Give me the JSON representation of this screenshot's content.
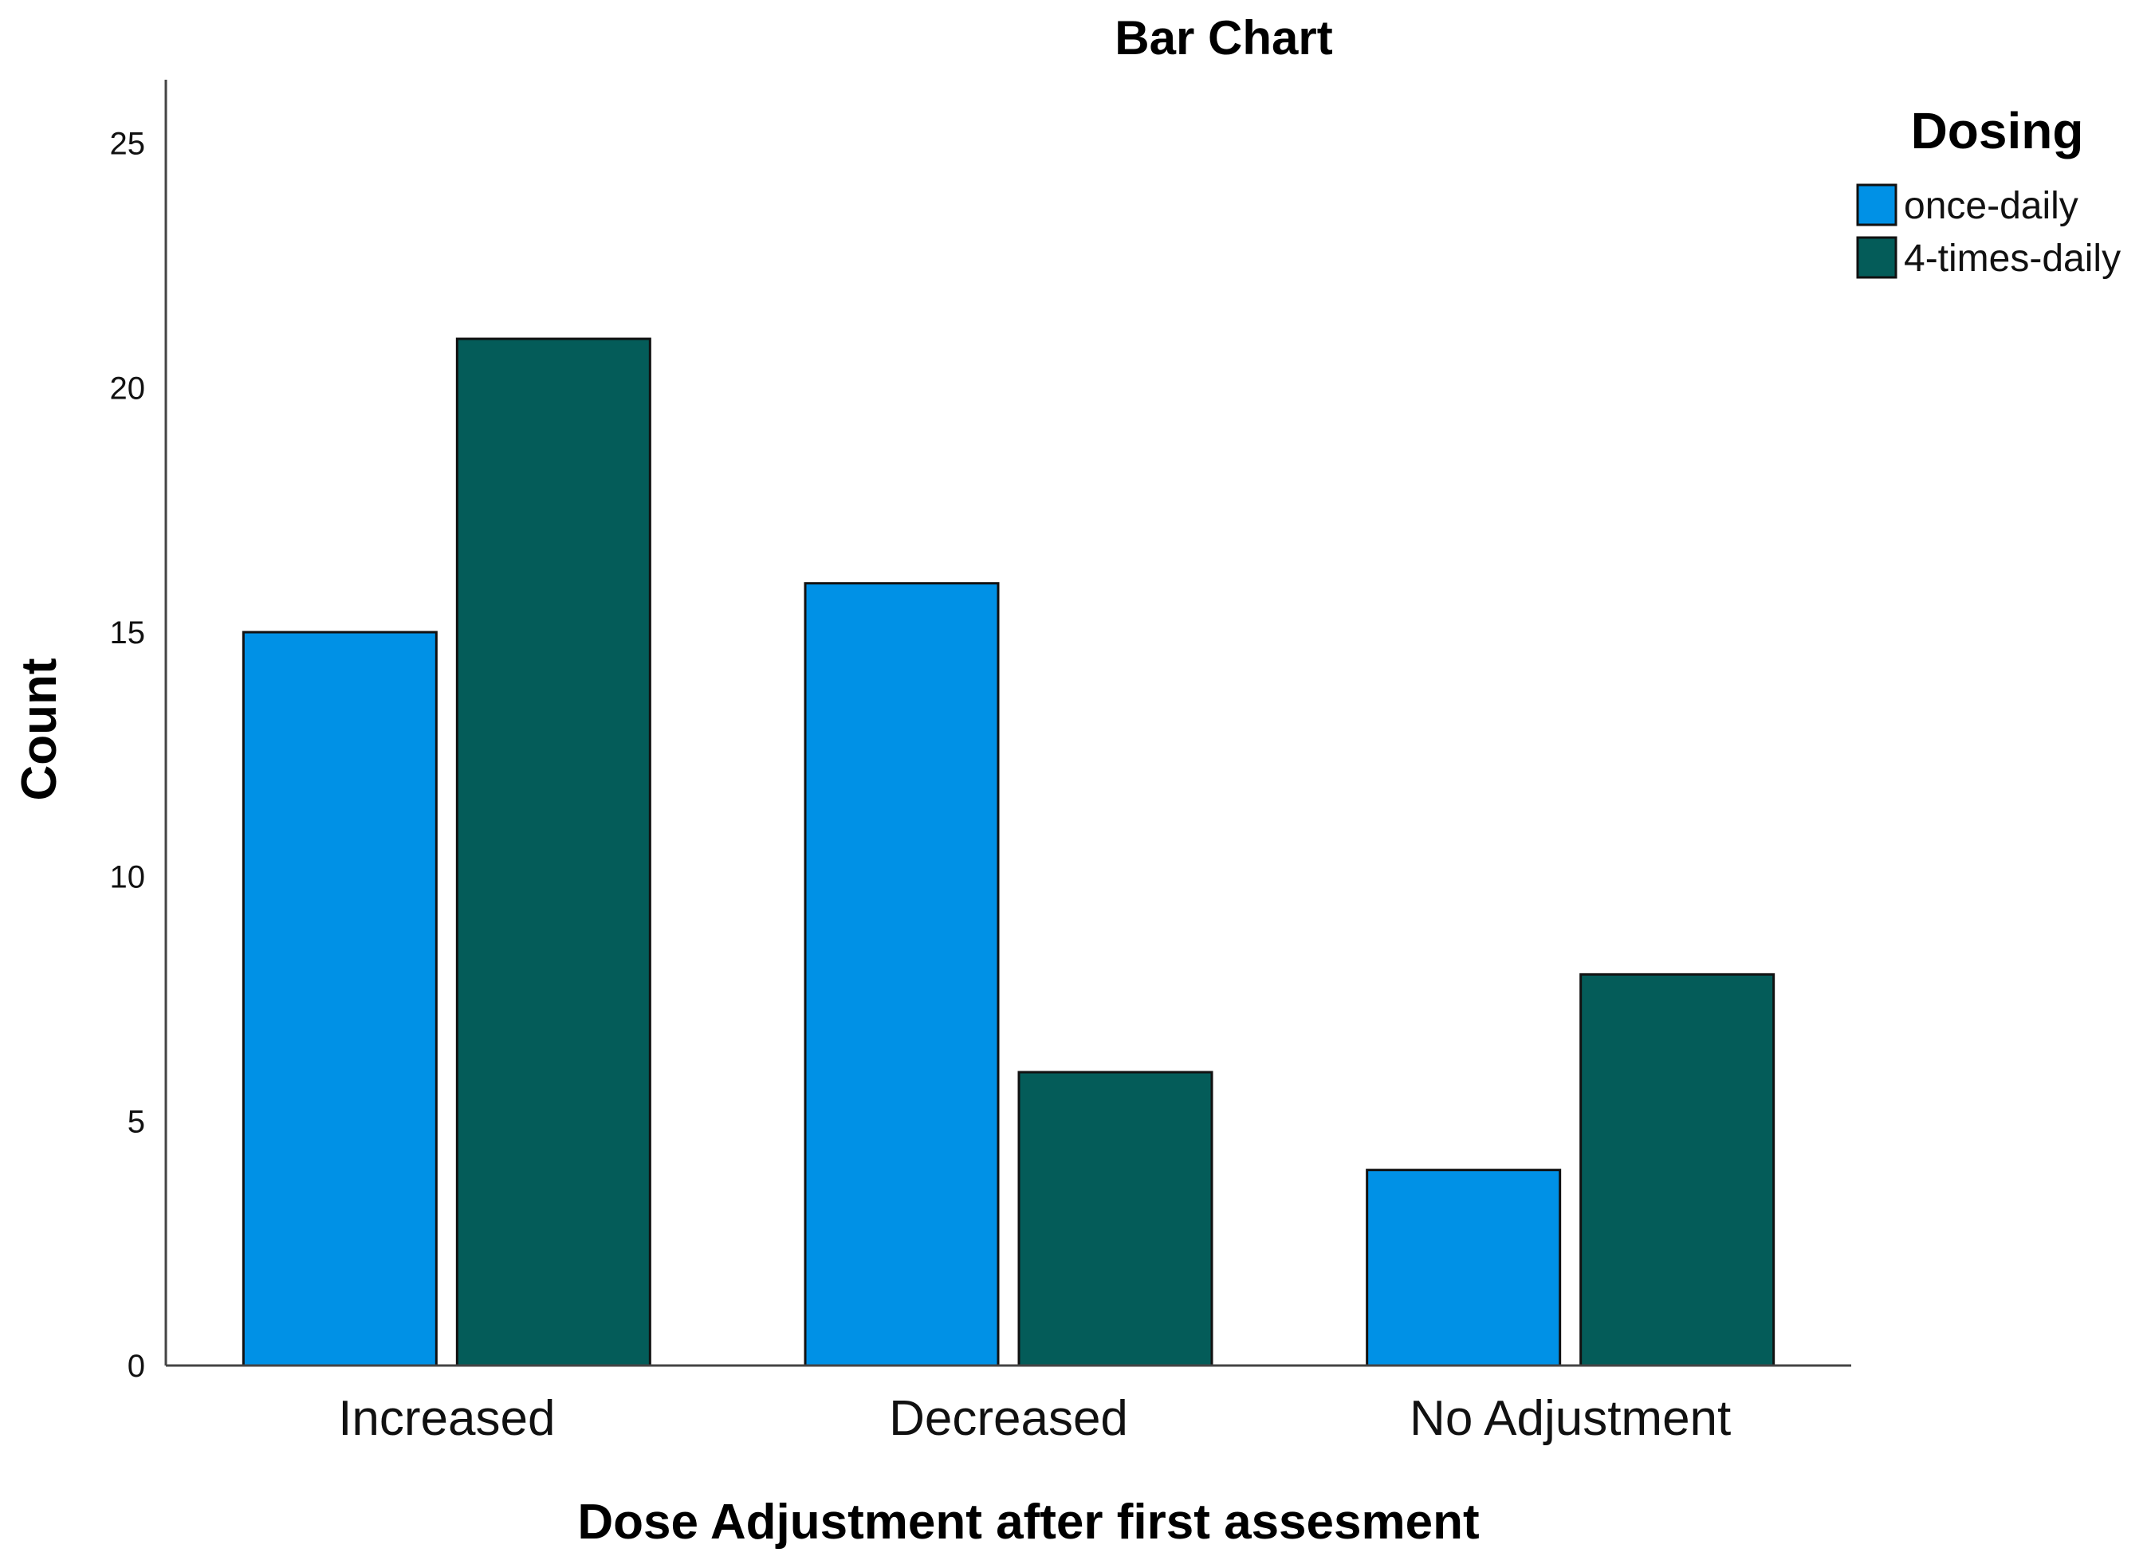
{
  "chart_data": {
    "type": "bar",
    "title": "Bar Chart",
    "xlabel": "Dose Adjustment after first assesment",
    "ylabel": "Count",
    "categories": [
      "Increased",
      "Decreased",
      "No Adjustment"
    ],
    "series": [
      {
        "name": "once-daily",
        "values": [
          15,
          16,
          4
        ],
        "color": "#0091e6"
      },
      {
        "name": "4-times-daily",
        "values": [
          21,
          6,
          8
        ],
        "color": "#045c59"
      }
    ],
    "ylim": [
      0,
      26.3
    ],
    "yticks": [
      "0",
      "5",
      "10",
      "15",
      "20",
      "25"
    ],
    "legend": {
      "title": "Dosing",
      "placement": "top-right"
    },
    "grid": false
  }
}
